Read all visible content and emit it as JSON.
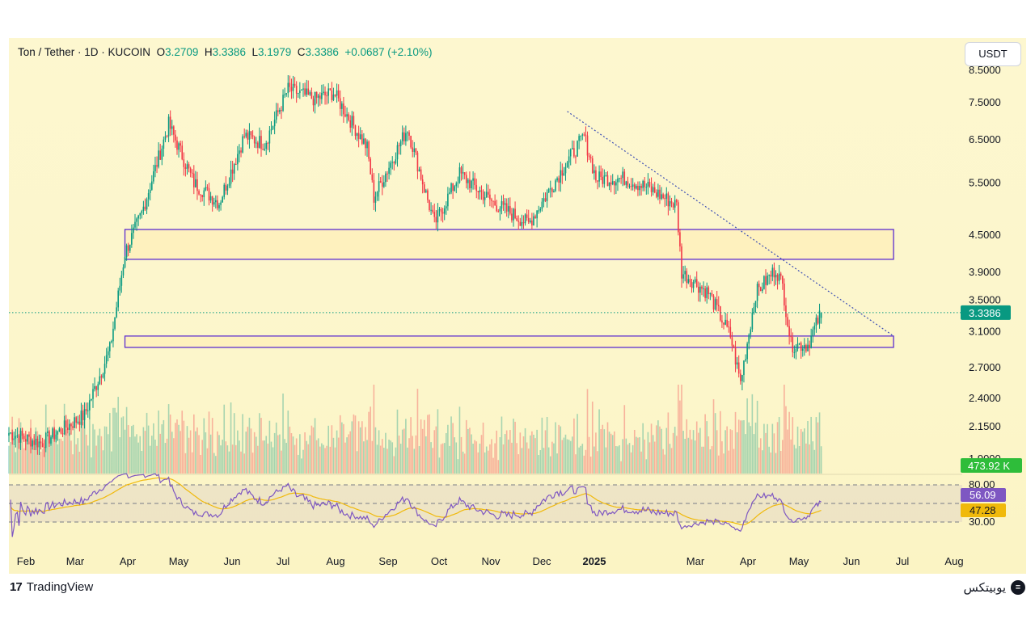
{
  "header": {
    "symbol": "Ton / Tether · 1D · KUCOIN",
    "open_label": "O",
    "open": "3.2709",
    "high_label": "H",
    "high": "3.3386",
    "low_label": "L",
    "low": "3.1979",
    "close_label": "C",
    "close": "3.3386",
    "change": "+0.0687 (+2.10%)"
  },
  "currency_button": "USDT",
  "footer": {
    "platform": "TradingView",
    "watermark": "یوبیتکس"
  },
  "colors": {
    "up": "#089981",
    "down": "#f23645",
    "rsi": "#7e57c2",
    "rsi_ma": "#f0b90b",
    "zone_border": "#5b2ccf",
    "trend": "#3d4fb5"
  },
  "chart_data": {
    "type": "candlestick",
    "y_scale": "log",
    "price_ticks": [
      "8.5000",
      "7.5000",
      "6.5000",
      "5.5000",
      "4.5000",
      "3.9000",
      "3.5000",
      "3.1000",
      "2.7000",
      "2.4000",
      "2.1500",
      "1.9000"
    ],
    "x_tick_labels": [
      "Feb",
      "Mar",
      "Apr",
      "May",
      "Jun",
      "Jul",
      "Aug",
      "Sep",
      "Oct",
      "Nov",
      "Dec",
      "2025",
      "Mar",
      "Apr",
      "May",
      "Jun",
      "Jul",
      "Aug"
    ],
    "last_price_label": "3.3386",
    "volume_label": "473.92 K",
    "close_anchors": [
      {
        "date": "2024-01-01",
        "close": 2.1
      },
      {
        "date": "2024-01-20",
        "close": 2.02
      },
      {
        "date": "2024-02-15",
        "close": 2.25
      },
      {
        "date": "2024-03-01",
        "close": 2.9
      },
      {
        "date": "2024-03-10",
        "close": 4.2
      },
      {
        "date": "2024-03-20",
        "close": 4.9
      },
      {
        "date": "2024-04-05",
        "close": 6.9
      },
      {
        "date": "2024-04-20",
        "close": 5.5
      },
      {
        "date": "2024-05-05",
        "close": 5.1
      },
      {
        "date": "2024-05-20",
        "close": 6.6
      },
      {
        "date": "2024-06-01",
        "close": 6.4
      },
      {
        "date": "2024-06-15",
        "close": 7.9
      },
      {
        "date": "2024-07-01",
        "close": 7.6
      },
      {
        "date": "2024-07-12",
        "close": 7.8
      },
      {
        "date": "2024-08-01",
        "close": 6.3
      },
      {
        "date": "2024-08-05",
        "close": 5.2
      },
      {
        "date": "2024-08-25",
        "close": 6.8
      },
      {
        "date": "2024-09-10",
        "close": 4.7
      },
      {
        "date": "2024-09-25",
        "close": 5.7
      },
      {
        "date": "2024-10-15",
        "close": 5.1
      },
      {
        "date": "2024-11-05",
        "close": 4.7
      },
      {
        "date": "2024-11-25",
        "close": 5.8
      },
      {
        "date": "2024-12-08",
        "close": 6.6
      },
      {
        "date": "2024-12-15",
        "close": 5.6
      },
      {
        "date": "2025-01-01",
        "close": 5.6
      },
      {
        "date": "2025-01-15",
        "close": 5.4
      },
      {
        "date": "2025-02-01",
        "close": 5.05
      },
      {
        "date": "2025-02-04",
        "close": 3.9
      },
      {
        "date": "2025-02-20",
        "close": 3.6
      },
      {
        "date": "2025-03-05",
        "close": 3.05
      },
      {
        "date": "2025-03-11",
        "close": 2.55
      },
      {
        "date": "2025-03-20",
        "close": 3.6
      },
      {
        "date": "2025-04-01",
        "close": 3.95
      },
      {
        "date": "2025-04-05",
        "close": 3.7
      },
      {
        "date": "2025-04-10",
        "close": 2.95
      },
      {
        "date": "2025-04-20",
        "close": 2.95
      },
      {
        "date": "2025-04-28",
        "close": 3.34
      }
    ],
    "zones": [
      {
        "from": "2024-03-10",
        "to": "2025-06-10",
        "low": 4.1,
        "high": 4.6
      },
      {
        "from": "2024-03-10",
        "to": "2025-06-10",
        "low": 2.92,
        "high": 3.05
      }
    ],
    "trendline": {
      "from_date": "2024-11-28",
      "from_price": 7.25,
      "to_date": "2025-06-10",
      "to_price": 3.05
    },
    "rsi": {
      "ticks": [
        "80.00",
        "30.00"
      ],
      "value": "56.09",
      "ma_value": "47.28",
      "band": [
        30,
        70
      ]
    }
  }
}
